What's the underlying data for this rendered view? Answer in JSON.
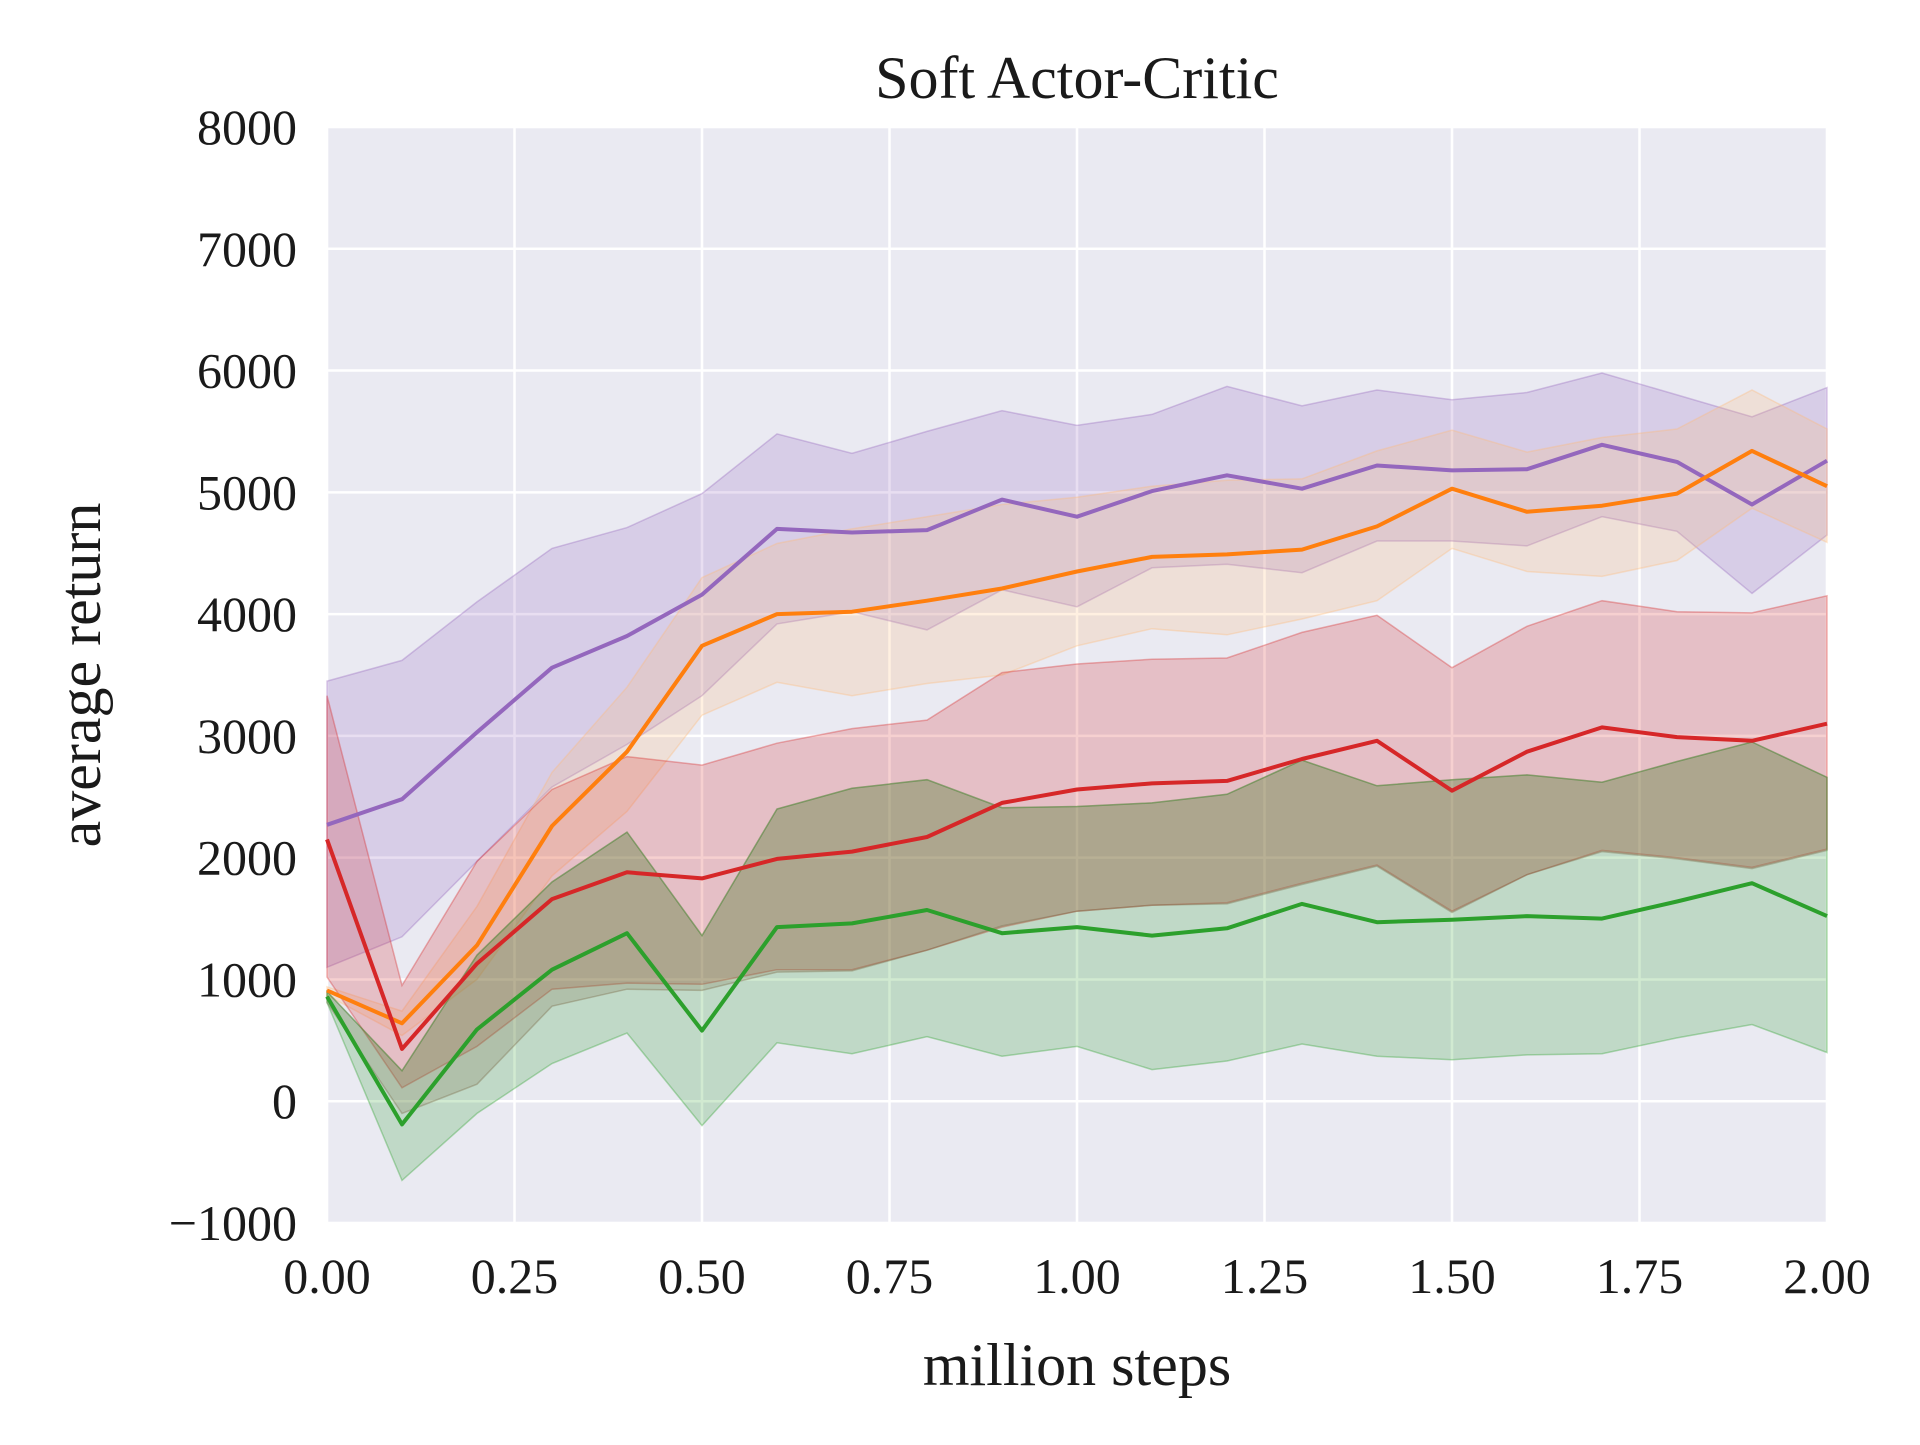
{
  "chart_data": {
    "type": "line",
    "title": "Soft Actor-Critic",
    "xlabel": "million steps",
    "ylabel": "average return",
    "xlim": [
      0,
      2
    ],
    "ylim": [
      -1000,
      8000
    ],
    "grid": true,
    "xticks": [
      "0.00",
      "0.25",
      "0.50",
      "0.75",
      "1.00",
      "1.25",
      "1.50",
      "1.75",
      "2.00"
    ],
    "yticks": [
      "−1000",
      "0",
      "1000",
      "2000",
      "3000",
      "4000",
      "5000",
      "6000",
      "7000",
      "8000"
    ],
    "x": [
      0,
      0.1,
      0.2,
      0.3,
      0.4,
      0.5,
      0.6,
      0.7,
      0.8,
      0.9,
      1.0,
      1.1,
      1.2,
      1.3,
      1.4,
      1.5,
      1.6,
      1.7,
      1.8,
      1.9,
      2.0
    ],
    "series": [
      {
        "color": "#9467bd",
        "values": [
          2270,
          2480,
          3030,
          3560,
          3820,
          4160,
          4700,
          4670,
          4690,
          4940,
          4800,
          5010,
          5140,
          5030,
          5220,
          5180,
          5190,
          5390,
          5250,
          4900,
          5260
        ],
        "upper": [
          3450,
          3620,
          4100,
          4540,
          4710,
          4990,
          5480,
          5320,
          5500,
          5670,
          5550,
          5640,
          5870,
          5710,
          5840,
          5760,
          5820,
          5980,
          5800,
          5620,
          5860
        ],
        "lower": [
          1100,
          1350,
          1970,
          2580,
          2930,
          3330,
          3920,
          4020,
          3870,
          4200,
          4060,
          4380,
          4410,
          4340,
          4600,
          4600,
          4560,
          4800,
          4680,
          4170,
          4650
        ]
      },
      {
        "color": "#ff7f0e",
        "values": [
          910,
          640,
          1280,
          2260,
          2870,
          3740,
          4000,
          4020,
          4110,
          4210,
          4350,
          4470,
          4490,
          4530,
          4720,
          5030,
          4840,
          4890,
          4990,
          5340,
          5050
        ]
      },
      {
        "color": "#ffbb78",
        "upper": [
          940,
          740,
          1600,
          2700,
          3400,
          4300,
          4580,
          4700,
          4800,
          4900,
          4960,
          5050,
          5100,
          5110,
          5340,
          5510,
          5330,
          5450,
          5520,
          5840,
          5520
        ],
        "lower": [
          870,
          540,
          1000,
          1850,
          2380,
          3170,
          3440,
          3330,
          3430,
          3500,
          3740,
          3880,
          3830,
          3960,
          4110,
          4540,
          4350,
          4310,
          4440,
          4870,
          4590
        ]
      },
      {
        "color": "#d62728",
        "values": [
          2150,
          430,
          1130,
          1660,
          1880,
          1830,
          1990,
          2050,
          2170,
          2450,
          2560,
          2610,
          2630,
          2810,
          2960,
          2550,
          2870,
          3070,
          2990,
          2960,
          3100
        ],
        "upper": [
          3330,
          950,
          1970,
          2560,
          2830,
          2760,
          2940,
          3060,
          3130,
          3520,
          3590,
          3630,
          3640,
          3850,
          3990,
          3560,
          3900,
          4110,
          4020,
          4010,
          4150
        ],
        "lower": [
          1020,
          110,
          450,
          920,
          970,
          960,
          1080,
          1080,
          1240,
          1430,
          1560,
          1610,
          1630,
          1790,
          1940,
          1560,
          1860,
          2060,
          2000,
          1920,
          2070
        ]
      },
      {
        "color": "#8c564b",
        "upper": [
          900,
          250,
          1200,
          1800,
          2210,
          1360,
          2400,
          2570,
          2640,
          2410,
          2420,
          2450,
          2520,
          2800,
          2590,
          2640,
          2680,
          2620,
          2790,
          2950,
          2660
        ],
        "lower": [
          810,
          -100,
          140,
          780,
          920,
          910,
          1060,
          1070,
          1240,
          1440,
          1560,
          1610,
          1620,
          1780,
          1930,
          1550,
          1860,
          2050,
          1990,
          1910,
          2060
        ]
      },
      {
        "color": "#2ca02c",
        "values": [
          860,
          -190,
          590,
          1080,
          1380,
          580,
          1430,
          1460,
          1570,
          1380,
          1430,
          1360,
          1420,
          1620,
          1470,
          1490,
          1520,
          1500,
          1640,
          1790,
          1520
        ],
        "upper": [
          900,
          250,
          1200,
          1800,
          2210,
          1360,
          2400,
          2570,
          2640,
          2410,
          2420,
          2450,
          2520,
          2800,
          2590,
          2640,
          2680,
          2620,
          2790,
          2950,
          2660
        ],
        "lower": [
          810,
          -650,
          -100,
          310,
          560,
          -200,
          480,
          390,
          530,
          370,
          450,
          260,
          330,
          470,
          370,
          340,
          380,
          390,
          520,
          630,
          400
        ]
      }
    ]
  }
}
